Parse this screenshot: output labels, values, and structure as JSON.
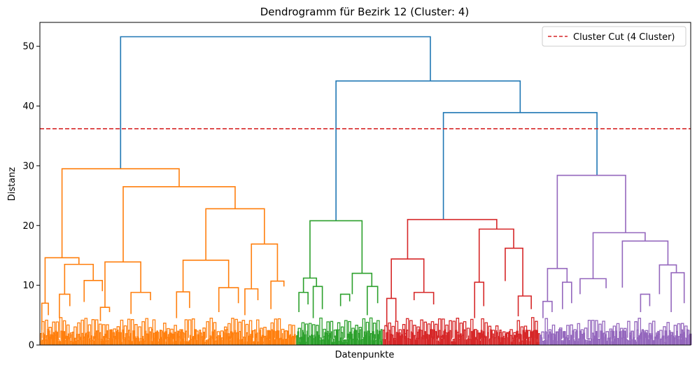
{
  "chart_data": {
    "type": "dendrogram",
    "title": "Dendrogramm für Bezirk 12 (Cluster: 4)",
    "xlabel": "Datenpunkte",
    "ylabel": "Distanz",
    "ylim": [
      0,
      54
    ],
    "yticks": [
      0,
      10,
      20,
      30,
      40,
      50
    ],
    "xlim": [
      0,
      100
    ],
    "cut": {
      "y": 36.2,
      "label": "Cluster Cut (4 Cluster)",
      "color": "#d62728",
      "style": "dashed"
    },
    "legend": {
      "position": "top-right",
      "entries": [
        "Cluster Cut (4 Cluster)"
      ]
    },
    "grid": false,
    "colors": {
      "orange": "#ff7f0e",
      "green": "#2ca02c",
      "red": "#d62728",
      "purple": "#9467bd",
      "link": "#1f77b4"
    },
    "clusters": [
      {
        "color": "orange",
        "range": [
          0,
          39.4
        ]
      },
      {
        "color": "green",
        "range": [
          39.4,
          52.7
        ]
      },
      {
        "color": "red",
        "range": [
          52.7,
          76.8
        ]
      },
      {
        "color": "purple",
        "range": [
          76.8,
          100
        ]
      }
    ],
    "links": [
      {
        "c": "link",
        "x1": 12.4,
        "x2": 60.0,
        "y1": 29.5,
        "y2": 44.2,
        "h": 51.6
      },
      {
        "c": "link",
        "x1": 45.5,
        "x2": 73.8,
        "y1": 20.8,
        "y2": 38.9,
        "h": 44.2
      },
      {
        "c": "link",
        "x1": 62.0,
        "x2": 85.6,
        "y1": 21.0,
        "y2": 28.4,
        "h": 38.9
      },
      {
        "c": "orange",
        "x1": 3.4,
        "x2": 21.4,
        "y1": 14.6,
        "y2": 26.5,
        "h": 29.5
      },
      {
        "c": "orange",
        "x1": 12.8,
        "x2": 30.0,
        "y1": 13.9,
        "y2": 22.8,
        "h": 26.5
      },
      {
        "c": "orange",
        "x1": 25.5,
        "x2": 34.5,
        "y1": 14.2,
        "y2": 16.9,
        "h": 22.8
      },
      {
        "c": "orange",
        "x1": 0.8,
        "x2": 6.0,
        "y1": 7.0,
        "y2": 13.5,
        "h": 14.6
      },
      {
        "c": "orange",
        "x1": 3.8,
        "x2": 8.2,
        "y1": 8.5,
        "y2": 10.8,
        "h": 13.5
      },
      {
        "c": "orange",
        "x1": 10.0,
        "x2": 15.5,
        "y1": 6.3,
        "y2": 8.8,
        "h": 13.9
      },
      {
        "c": "orange",
        "x1": 22.0,
        "x2": 29.0,
        "y1": 8.9,
        "y2": 9.6,
        "h": 14.2
      },
      {
        "c": "orange",
        "x1": 32.5,
        "x2": 36.5,
        "y1": 9.4,
        "y2": 10.7,
        "h": 16.9
      },
      {
        "c": "orange",
        "x1": 0.3,
        "x2": 1.3,
        "y1": 2.5,
        "y2": 5.0,
        "h": 7.0
      },
      {
        "c": "orange",
        "x1": 3.0,
        "x2": 4.6,
        "y1": 4.5,
        "y2": 6.5,
        "h": 8.5
      },
      {
        "c": "orange",
        "x1": 6.8,
        "x2": 9.6,
        "y1": 7.2,
        "y2": 9.0,
        "h": 10.8
      },
      {
        "c": "orange",
        "x1": 9.3,
        "x2": 10.7,
        "y1": 4.0,
        "y2": 5.5,
        "h": 6.3
      },
      {
        "c": "orange",
        "x1": 14.0,
        "x2": 17.0,
        "y1": 5.2,
        "y2": 7.5,
        "h": 8.8
      },
      {
        "c": "orange",
        "x1": 21.0,
        "x2": 23.0,
        "y1": 4.5,
        "y2": 6.2,
        "h": 8.9
      },
      {
        "c": "orange",
        "x1": 27.5,
        "x2": 30.5,
        "y1": 5.5,
        "y2": 7.0,
        "h": 9.6
      },
      {
        "c": "orange",
        "x1": 31.5,
        "x2": 33.5,
        "y1": 5.0,
        "y2": 7.5,
        "h": 9.4
      },
      {
        "c": "orange",
        "x1": 35.5,
        "x2": 37.5,
        "y1": 6.0,
        "y2": 9.8,
        "h": 10.7
      },
      {
        "c": "green",
        "x1": 41.5,
        "x2": 49.5,
        "y1": 11.2,
        "y2": 12.0,
        "h": 20.8
      },
      {
        "c": "green",
        "x1": 40.5,
        "x2": 42.5,
        "y1": 8.8,
        "y2": 9.8,
        "h": 11.2
      },
      {
        "c": "green",
        "x1": 48.0,
        "x2": 51.0,
        "y1": 8.5,
        "y2": 9.8,
        "h": 12.0
      },
      {
        "c": "green",
        "x1": 39.8,
        "x2": 41.2,
        "y1": 5.5,
        "y2": 6.8,
        "h": 8.8
      },
      {
        "c": "green",
        "x1": 42.0,
        "x2": 43.4,
        "y1": 4.5,
        "y2": 6.0,
        "h": 9.8
      },
      {
        "c": "green",
        "x1": 46.2,
        "x2": 47.6,
        "y1": 6.5,
        "y2": 7.3,
        "h": 8.5
      },
      {
        "c": "green",
        "x1": 50.3,
        "x2": 51.9,
        "y1": 5.0,
        "y2": 7.0,
        "h": 9.8
      },
      {
        "c": "red",
        "x1": 56.5,
        "x2": 70.2,
        "y1": 14.4,
        "y2": 19.4,
        "h": 21.0
      },
      {
        "c": "red",
        "x1": 54.0,
        "x2": 59.0,
        "y1": 7.8,
        "y2": 8.8,
        "h": 14.4
      },
      {
        "c": "red",
        "x1": 67.5,
        "x2": 72.8,
        "y1": 10.5,
        "y2": 16.2,
        "h": 19.4
      },
      {
        "c": "red",
        "x1": 71.5,
        "x2": 74.2,
        "y1": 10.7,
        "y2": 8.2,
        "h": 16.2
      },
      {
        "c": "red",
        "x1": 53.3,
        "x2": 54.7,
        "y1": 3.0,
        "y2": 4.0,
        "h": 7.8
      },
      {
        "c": "red",
        "x1": 57.5,
        "x2": 60.5,
        "y1": 7.5,
        "y2": 6.8,
        "h": 8.8
      },
      {
        "c": "red",
        "x1": 66.8,
        "x2": 68.2,
        "y1": 4.5,
        "y2": 6.5,
        "h": 10.5
      },
      {
        "c": "red",
        "x1": 73.5,
        "x2": 75.5,
        "y1": 4.8,
        "y2": 6.0,
        "h": 8.2
      },
      {
        "c": "purple",
        "x1": 79.5,
        "x2": 90.0,
        "y1": 12.8,
        "y2": 18.8,
        "h": 28.4
      },
      {
        "c": "purple",
        "x1": 78.0,
        "x2": 81.0,
        "y1": 7.3,
        "y2": 10.5,
        "h": 12.8
      },
      {
        "c": "purple",
        "x1": 85.0,
        "x2": 93.0,
        "y1": 11.1,
        "y2": 17.4,
        "h": 18.8
      },
      {
        "c": "purple",
        "x1": 89.5,
        "x2": 96.5,
        "y1": 9.6,
        "y2": 13.4,
        "h": 17.4
      },
      {
        "c": "purple",
        "x1": 95.2,
        "x2": 97.8,
        "y1": 8.5,
        "y2": 12.1,
        "h": 13.4
      },
      {
        "c": "purple",
        "x1": 83.0,
        "x2": 87.0,
        "y1": 8.5,
        "y2": 9.5,
        "h": 11.1
      },
      {
        "c": "purple",
        "x1": 77.3,
        "x2": 78.7,
        "y1": 4.5,
        "y2": 5.5,
        "h": 7.3
      },
      {
        "c": "purple",
        "x1": 80.3,
        "x2": 81.7,
        "y1": 6.0,
        "y2": 7.0,
        "h": 10.5
      },
      {
        "c": "purple",
        "x1": 92.3,
        "x2": 93.7,
        "y1": 5.5,
        "y2": 6.5,
        "h": 8.5
      },
      {
        "c": "purple",
        "x1": 97.0,
        "x2": 99.0,
        "y1": 5.5,
        "y2": 7.0,
        "h": 12.1
      }
    ]
  }
}
